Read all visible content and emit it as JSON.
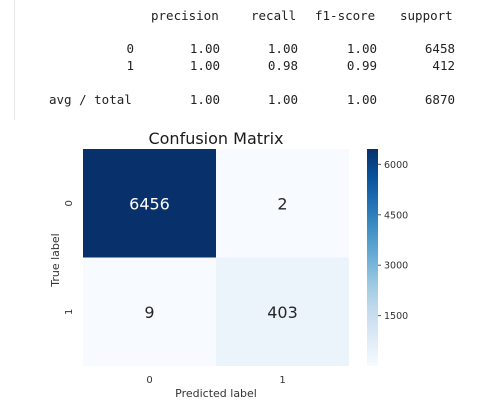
{
  "report": {
    "headers": [
      "precision",
      "recall",
      "f1-score",
      "support"
    ],
    "rows": [
      {
        "label": "0",
        "precision": "1.00",
        "recall": "1.00",
        "f1": "1.00",
        "support": "6458"
      },
      {
        "label": "1",
        "precision": "1.00",
        "recall": "0.98",
        "f1": "0.99",
        "support": "412"
      },
      {
        "label": "avg / total",
        "precision": "1.00",
        "recall": "1.00",
        "f1": "1.00",
        "support": "6870"
      }
    ]
  },
  "chart_data": {
    "type": "heatmap",
    "title": "Confusion Matrix",
    "xlabel": "Predicted label",
    "ylabel": "True label",
    "x_categories": [
      "0",
      "1"
    ],
    "y_categories": [
      "0",
      "1"
    ],
    "matrix": [
      [
        6456,
        2
      ],
      [
        9,
        403
      ]
    ],
    "colormap": "Blues",
    "colorbar": {
      "min": 2,
      "max": 6456,
      "ticks": [
        1500,
        3000,
        4500,
        6000
      ],
      "colors": [
        "#f7fbff",
        "#deebf7",
        "#c6dbef",
        "#9ecae1",
        "#6baed6",
        "#4292c6",
        "#2171b5",
        "#08519c",
        "#08306b"
      ]
    }
  }
}
